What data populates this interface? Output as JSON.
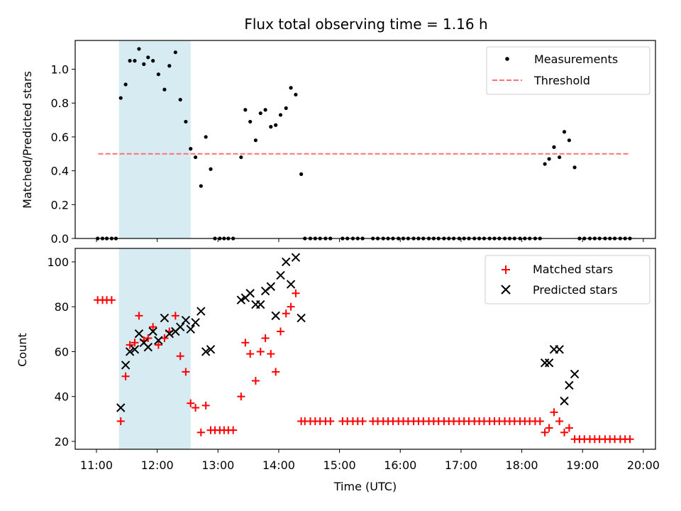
{
  "chart_data": {
    "title": "Flux total observing time = 1.16 h",
    "xlabel": "Time (UTC)",
    "x_ticks": [
      "11:00",
      "12:00",
      "13:00",
      "14:00",
      "15:00",
      "16:00",
      "17:00",
      "18:00",
      "19:00",
      "20:00"
    ],
    "x_range_hours": [
      10.65,
      20.2
    ],
    "shaded_span_hours": [
      11.37,
      12.55
    ],
    "shade_color": "#add8e6",
    "top_panel": {
      "type": "scatter",
      "ylabel": "Matched/Predicted stars",
      "ylim": [
        0,
        1.17
      ],
      "y_ticks": [
        "0.0",
        "0.2",
        "0.4",
        "0.6",
        "0.8",
        "1.0"
      ],
      "threshold": {
        "name": "Threshold",
        "value": 0.5,
        "x_range": [
          11.03,
          19.78
        ],
        "color": "#ff7070"
      },
      "measurements": {
        "name": "Measurements",
        "color": "#000000",
        "points": [
          [
            11.02,
            0
          ],
          [
            11.1,
            0
          ],
          [
            11.17,
            0
          ],
          [
            11.25,
            0
          ],
          [
            11.32,
            0
          ],
          [
            11.4,
            0.83
          ],
          [
            11.48,
            0.91
          ],
          [
            11.55,
            1.05
          ],
          [
            11.63,
            1.05
          ],
          [
            11.7,
            1.12
          ],
          [
            11.78,
            1.03
          ],
          [
            11.85,
            1.07
          ],
          [
            11.93,
            1.05
          ],
          [
            12.02,
            0.97
          ],
          [
            12.12,
            0.88
          ],
          [
            12.2,
            1.02
          ],
          [
            12.3,
            1.1
          ],
          [
            12.38,
            0.82
          ],
          [
            12.47,
            0.69
          ],
          [
            12.55,
            0.53
          ],
          [
            12.63,
            0.48
          ],
          [
            12.72,
            0.31
          ],
          [
            12.8,
            0.6
          ],
          [
            12.88,
            0.41
          ],
          [
            12.95,
            0
          ],
          [
            13.03,
            0
          ],
          [
            13.1,
            0
          ],
          [
            13.17,
            0
          ],
          [
            13.25,
            0
          ],
          [
            13.38,
            0.48
          ],
          [
            13.45,
            0.76
          ],
          [
            13.53,
            0.69
          ],
          [
            13.62,
            0.58
          ],
          [
            13.7,
            0.74
          ],
          [
            13.78,
            0.76
          ],
          [
            13.87,
            0.66
          ],
          [
            13.95,
            0.67
          ],
          [
            14.03,
            0.73
          ],
          [
            14.12,
            0.77
          ],
          [
            14.2,
            0.89
          ],
          [
            14.28,
            0.85
          ],
          [
            14.37,
            0.38
          ],
          [
            14.43,
            0
          ],
          [
            14.52,
            0
          ],
          [
            14.6,
            0
          ],
          [
            14.68,
            0
          ],
          [
            14.77,
            0
          ],
          [
            14.85,
            0
          ],
          [
            15.05,
            0
          ],
          [
            15.13,
            0
          ],
          [
            15.22,
            0
          ],
          [
            15.3,
            0
          ],
          [
            15.38,
            0
          ],
          [
            15.55,
            0
          ],
          [
            15.63,
            0
          ],
          [
            15.72,
            0
          ],
          [
            15.8,
            0
          ],
          [
            15.88,
            0
          ],
          [
            15.97,
            0
          ],
          [
            16.05,
            0
          ],
          [
            16.13,
            0
          ],
          [
            16.22,
            0
          ],
          [
            16.3,
            0
          ],
          [
            16.38,
            0
          ],
          [
            16.47,
            0
          ],
          [
            16.55,
            0
          ],
          [
            16.63,
            0
          ],
          [
            16.72,
            0
          ],
          [
            16.8,
            0
          ],
          [
            16.88,
            0
          ],
          [
            16.97,
            0
          ],
          [
            17.05,
            0
          ],
          [
            17.13,
            0
          ],
          [
            17.22,
            0
          ],
          [
            17.3,
            0
          ],
          [
            17.38,
            0
          ],
          [
            17.47,
            0
          ],
          [
            17.55,
            0
          ],
          [
            17.63,
            0
          ],
          [
            17.72,
            0
          ],
          [
            17.8,
            0
          ],
          [
            17.88,
            0
          ],
          [
            17.97,
            0
          ],
          [
            18.05,
            0
          ],
          [
            18.13,
            0
          ],
          [
            18.22,
            0
          ],
          [
            18.3,
            0
          ],
          [
            18.38,
            0.44
          ],
          [
            18.45,
            0.47
          ],
          [
            18.53,
            0.54
          ],
          [
            18.62,
            0.48
          ],
          [
            18.7,
            0.63
          ],
          [
            18.78,
            0.58
          ],
          [
            18.87,
            0.42
          ],
          [
            18.95,
            0
          ],
          [
            19.03,
            0
          ],
          [
            19.12,
            0
          ],
          [
            19.2,
            0
          ],
          [
            19.28,
            0
          ],
          [
            19.37,
            0
          ],
          [
            19.45,
            0
          ],
          [
            19.53,
            0
          ],
          [
            19.62,
            0
          ],
          [
            19.7,
            0
          ],
          [
            19.78,
            0
          ]
        ]
      }
    },
    "bottom_panel": {
      "type": "scatter",
      "ylabel": "Count",
      "ylim": [
        16.5,
        106
      ],
      "y_ticks": [
        "20",
        "40",
        "60",
        "80",
        "100"
      ],
      "series": [
        {
          "name": "Matched stars",
          "marker": "plus",
          "color": "#ff0000",
          "points": [
            [
              11.02,
              83
            ],
            [
              11.1,
              83
            ],
            [
              11.17,
              83
            ],
            [
              11.25,
              83
            ],
            [
              11.4,
              29
            ],
            [
              11.48,
              49
            ],
            [
              11.55,
              63
            ],
            [
              11.63,
              64
            ],
            [
              11.7,
              76
            ],
            [
              11.78,
              65
            ],
            [
              11.85,
              66
            ],
            [
              11.93,
              71
            ],
            [
              12.02,
              63
            ],
            [
              12.12,
              66
            ],
            [
              12.2,
              69
            ],
            [
              12.3,
              76
            ],
            [
              12.38,
              58
            ],
            [
              12.47,
              51
            ],
            [
              12.55,
              37
            ],
            [
              12.63,
              35
            ],
            [
              12.72,
              24
            ],
            [
              12.8,
              36
            ],
            [
              12.88,
              25
            ],
            [
              12.95,
              25
            ],
            [
              13.03,
              25
            ],
            [
              13.1,
              25
            ],
            [
              13.17,
              25
            ],
            [
              13.25,
              25
            ],
            [
              13.38,
              40
            ],
            [
              13.45,
              64
            ],
            [
              13.53,
              59
            ],
            [
              13.62,
              47
            ],
            [
              13.7,
              60
            ],
            [
              13.78,
              66
            ],
            [
              13.87,
              59
            ],
            [
              13.95,
              51
            ],
            [
              14.03,
              69
            ],
            [
              14.12,
              77
            ],
            [
              14.2,
              80
            ],
            [
              14.28,
              86
            ],
            [
              14.37,
              29
            ],
            [
              14.43,
              29
            ],
            [
              14.52,
              29
            ],
            [
              14.6,
              29
            ],
            [
              14.68,
              29
            ],
            [
              14.77,
              29
            ],
            [
              14.85,
              29
            ],
            [
              15.05,
              29
            ],
            [
              15.13,
              29
            ],
            [
              15.22,
              29
            ],
            [
              15.3,
              29
            ],
            [
              15.38,
              29
            ],
            [
              15.55,
              29
            ],
            [
              15.63,
              29
            ],
            [
              15.72,
              29
            ],
            [
              15.8,
              29
            ],
            [
              15.88,
              29
            ],
            [
              15.97,
              29
            ],
            [
              16.05,
              29
            ],
            [
              16.13,
              29
            ],
            [
              16.22,
              29
            ],
            [
              16.3,
              29
            ],
            [
              16.38,
              29
            ],
            [
              16.47,
              29
            ],
            [
              16.55,
              29
            ],
            [
              16.63,
              29
            ],
            [
              16.72,
              29
            ],
            [
              16.8,
              29
            ],
            [
              16.88,
              29
            ],
            [
              16.97,
              29
            ],
            [
              17.05,
              29
            ],
            [
              17.13,
              29
            ],
            [
              17.22,
              29
            ],
            [
              17.3,
              29
            ],
            [
              17.38,
              29
            ],
            [
              17.47,
              29
            ],
            [
              17.55,
              29
            ],
            [
              17.63,
              29
            ],
            [
              17.72,
              29
            ],
            [
              17.8,
              29
            ],
            [
              17.88,
              29
            ],
            [
              17.97,
              29
            ],
            [
              18.05,
              29
            ],
            [
              18.13,
              29
            ],
            [
              18.22,
              29
            ],
            [
              18.3,
              29
            ],
            [
              18.38,
              24
            ],
            [
              18.45,
              26
            ],
            [
              18.53,
              33
            ],
            [
              18.62,
              29
            ],
            [
              18.7,
              24
            ],
            [
              18.78,
              26
            ],
            [
              18.87,
              21
            ],
            [
              18.95,
              21
            ],
            [
              19.03,
              21
            ],
            [
              19.12,
              21
            ],
            [
              19.2,
              21
            ],
            [
              19.28,
              21
            ],
            [
              19.37,
              21
            ],
            [
              19.45,
              21
            ],
            [
              19.53,
              21
            ],
            [
              19.62,
              21
            ],
            [
              19.7,
              21
            ],
            [
              19.78,
              21
            ]
          ]
        },
        {
          "name": "Predicted stars",
          "marker": "x",
          "color": "#000000",
          "points": [
            [
              11.4,
              35
            ],
            [
              11.48,
              54
            ],
            [
              11.55,
              60
            ],
            [
              11.63,
              61
            ],
            [
              11.7,
              68
            ],
            [
              11.78,
              64
            ],
            [
              11.85,
              62
            ],
            [
              11.93,
              69
            ],
            [
              12.02,
              65
            ],
            [
              12.12,
              75
            ],
            [
              12.2,
              68
            ],
            [
              12.3,
              69
            ],
            [
              12.38,
              71
            ],
            [
              12.47,
              74
            ],
            [
              12.55,
              70
            ],
            [
              12.63,
              73
            ],
            [
              12.72,
              78
            ],
            [
              12.8,
              60
            ],
            [
              12.88,
              61
            ],
            [
              13.38,
              83
            ],
            [
              13.45,
              84
            ],
            [
              13.53,
              86
            ],
            [
              13.62,
              81
            ],
            [
              13.7,
              81
            ],
            [
              13.78,
              87
            ],
            [
              13.87,
              89
            ],
            [
              13.95,
              76
            ],
            [
              14.03,
              94
            ],
            [
              14.12,
              100
            ],
            [
              14.2,
              90
            ],
            [
              14.28,
              102
            ],
            [
              14.37,
              75
            ],
            [
              18.38,
              55
            ],
            [
              18.45,
              55
            ],
            [
              18.53,
              61
            ],
            [
              18.62,
              61
            ],
            [
              18.7,
              38
            ],
            [
              18.78,
              45
            ],
            [
              18.87,
              50
            ]
          ]
        }
      ]
    }
  }
}
